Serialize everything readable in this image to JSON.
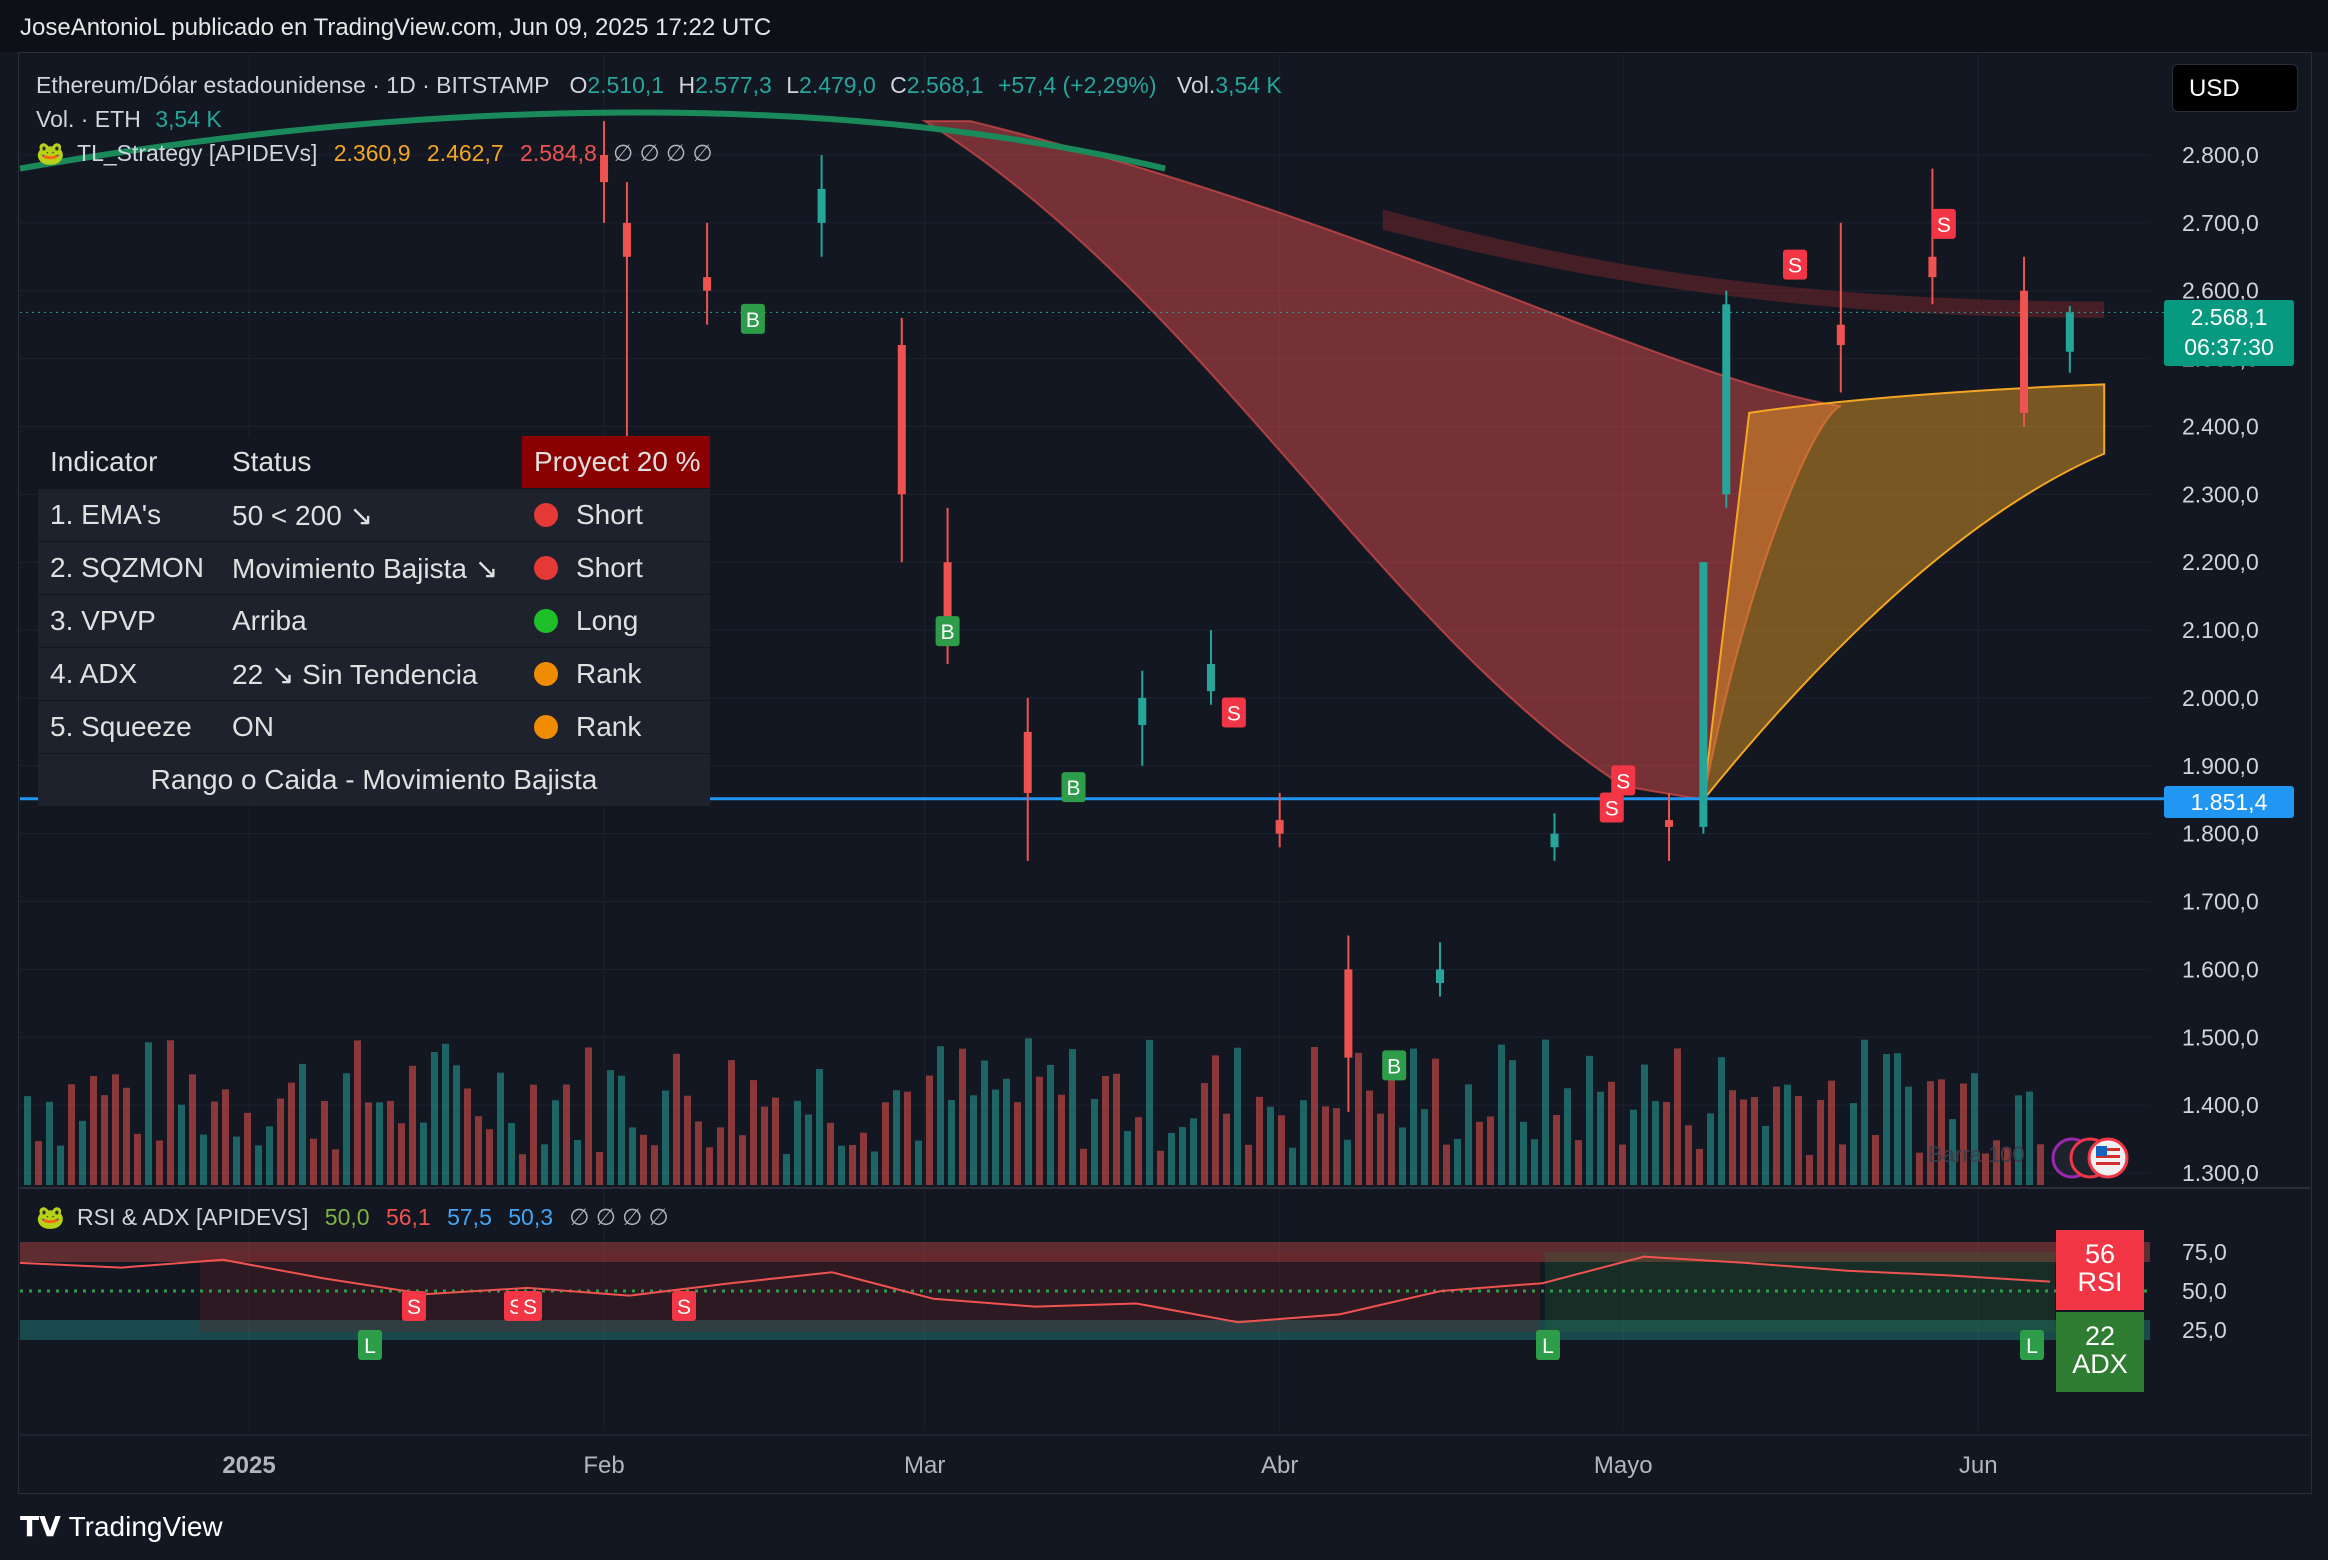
{
  "published": "JoseAntonioL publicado en TradingView.com, Jun 09, 2025 17:22 UTC",
  "legend": {
    "symbol": "Ethereum/Dólar estadounidense · 1D · BITSTAMP",
    "o_label": "O",
    "o_val": "2.510,1",
    "h_label": "H",
    "h_val": "2.577,3",
    "l_label": "L",
    "l_val": "2.479,0",
    "c_label": "C",
    "c_val": "2.568,1",
    "change": "+57,4 (+2,29%)",
    "vol_label": "Vol.",
    "vol_val": "3,54 K",
    "vol_eth_label": "Vol. · ETH",
    "vol_eth_val": "3,54 K",
    "strategy_name": "TL_Strategy [APIDEVs]",
    "s1": "2.360,9",
    "s2": "2.462,7",
    "s3": "2.584,8",
    "null_sym": "∅ ∅ ∅ ∅"
  },
  "currency_button": "USD",
  "table": {
    "headers": [
      "Indicator",
      "Status",
      "Proyect 20 %"
    ],
    "rows": [
      {
        "name": "1. EMA's",
        "status": "50 < 200 ↘",
        "signal": "Short",
        "color": "#e53935"
      },
      {
        "name": "2. SQZMON",
        "status": "Movimiento Bajista ↘",
        "signal": "Short",
        "color": "#e53935"
      },
      {
        "name": "3. VPVP",
        "status": "Arriba",
        "signal": "Long",
        "color": "#1fbf2a"
      },
      {
        "name": "4. ADX",
        "status": "22 ↘ Sin Tendencia",
        "signal": "Rank",
        "color": "#f08c00"
      },
      {
        "name": "5. Squeeze",
        "status": "ON",
        "signal": "Rank",
        "color": "#f08c00"
      }
    ],
    "footer": "Rango o Caida - Movimiento Bajista"
  },
  "price_tags": {
    "last": "2.568,1",
    "countdown": "06:37:30",
    "hline": "1.851,4"
  },
  "rsi_legend": {
    "name": "RSI & ADX [APIDEVS]",
    "v1": "50,0",
    "v2": "56,1",
    "v3": "57,5",
    "v4": "50,3",
    "null_sym": "∅ ∅ ∅ ∅"
  },
  "rsi_tag": {
    "value": "56",
    "label": "RSI"
  },
  "adx_tag": {
    "value": "22",
    "label": "ADX"
  },
  "bars_watermark": "Barra 100",
  "branding": "TradingView",
  "chart_data": [
    {
      "type": "candlestick",
      "title": "Ethereum/Dólar estadounidense · 1D · BITSTAMP",
      "x_ticks": [
        "2025",
        "Feb",
        "Mar",
        "Abr",
        "Mayo",
        "Jun"
      ],
      "y_ticks": [
        "2.800,0",
        "2.700,0",
        "2.600,0",
        "2.500,0",
        "2.400,0",
        "2.300,0",
        "2.200,0",
        "2.100,0",
        "2.000,0",
        "1.900,0",
        "1.800,0",
        "1.700,0",
        "1.600,0",
        "1.500,0",
        "1.400,0",
        "1.300,0"
      ],
      "ylim": [
        1280,
        2850
      ],
      "horizontal_line": 1851.4,
      "last_price": 2568.1,
      "series": [
        {
          "date": "2025-02-01",
          "o": 2800,
          "h": 2850,
          "l": 2700,
          "c": 2760
        },
        {
          "date": "2025-02-03",
          "o": 2700,
          "h": 2760,
          "l": 2150,
          "c": 2650
        },
        {
          "date": "2025-02-10",
          "o": 2620,
          "h": 2700,
          "l": 2550,
          "c": 2600
        },
        {
          "date": "2025-02-20",
          "o": 2700,
          "h": 2800,
          "l": 2650,
          "c": 2750
        },
        {
          "date": "2025-02-27",
          "o": 2520,
          "h": 2560,
          "l": 2200,
          "c": 2300
        },
        {
          "date": "2025-03-03",
          "o": 2200,
          "h": 2280,
          "l": 2050,
          "c": 2100
        },
        {
          "date": "2025-03-10",
          "o": 1950,
          "h": 2000,
          "l": 1760,
          "c": 1860
        },
        {
          "date": "2025-03-20",
          "o": 1960,
          "h": 2040,
          "l": 1900,
          "c": 2000
        },
        {
          "date": "2025-03-26",
          "o": 2010,
          "h": 2100,
          "l": 1990,
          "c": 2050
        },
        {
          "date": "2025-04-01",
          "o": 1820,
          "h": 1860,
          "l": 1780,
          "c": 1800
        },
        {
          "date": "2025-04-07",
          "o": 1600,
          "h": 1650,
          "l": 1390,
          "c": 1470
        },
        {
          "date": "2025-04-15",
          "o": 1580,
          "h": 1640,
          "l": 1560,
          "c": 1600
        },
        {
          "date": "2025-04-25",
          "o": 1780,
          "h": 1830,
          "l": 1760,
          "c": 1800
        },
        {
          "date": "2025-05-05",
          "o": 1820,
          "h": 1860,
          "l": 1760,
          "c": 1810
        },
        {
          "date": "2025-05-08",
          "o": 1810,
          "h": 2200,
          "l": 1800,
          "c": 2200
        },
        {
          "date": "2025-05-10",
          "o": 2300,
          "h": 2600,
          "l": 2280,
          "c": 2580
        },
        {
          "date": "2025-05-20",
          "o": 2550,
          "h": 2700,
          "l": 2450,
          "c": 2520
        },
        {
          "date": "2025-05-28",
          "o": 2650,
          "h": 2780,
          "l": 2580,
          "c": 2620
        },
        {
          "date": "2025-06-05",
          "o": 2600,
          "h": 2650,
          "l": 2400,
          "c": 2420
        },
        {
          "date": "2025-06-09",
          "o": 2510.1,
          "h": 2577.3,
          "l": 2479.0,
          "c": 2568.1
        }
      ],
      "signals": [
        {
          "label": "B",
          "date": "2025-02-14"
        },
        {
          "label": "B",
          "date": "2025-03-03"
        },
        {
          "label": "B",
          "date": "2025-03-14"
        },
        {
          "label": "S",
          "date": "2025-03-28"
        },
        {
          "label": "B",
          "date": "2025-04-11"
        },
        {
          "label": "S",
          "date": "2025-04-30"
        },
        {
          "label": "S",
          "date": "2025-05-01"
        },
        {
          "label": "S",
          "date": "2025-05-16"
        },
        {
          "label": "S",
          "date": "2025-05-29"
        }
      ]
    },
    {
      "type": "line",
      "title": "RSI & ADX [APIDEVS]",
      "y_ticks": [
        "75,0",
        "50,0",
        "25,0"
      ],
      "ylim": [
        15,
        90
      ],
      "series": [
        {
          "name": "RSI",
          "values": [
            68,
            65,
            70,
            58,
            48,
            52,
            47,
            55,
            62,
            45,
            40,
            42,
            30,
            35,
            50,
            55,
            72,
            68,
            63,
            60,
            56
          ]
        }
      ],
      "signals": [
        "L",
        "S",
        "S",
        "S",
        "S",
        "L",
        "L"
      ]
    }
  ]
}
